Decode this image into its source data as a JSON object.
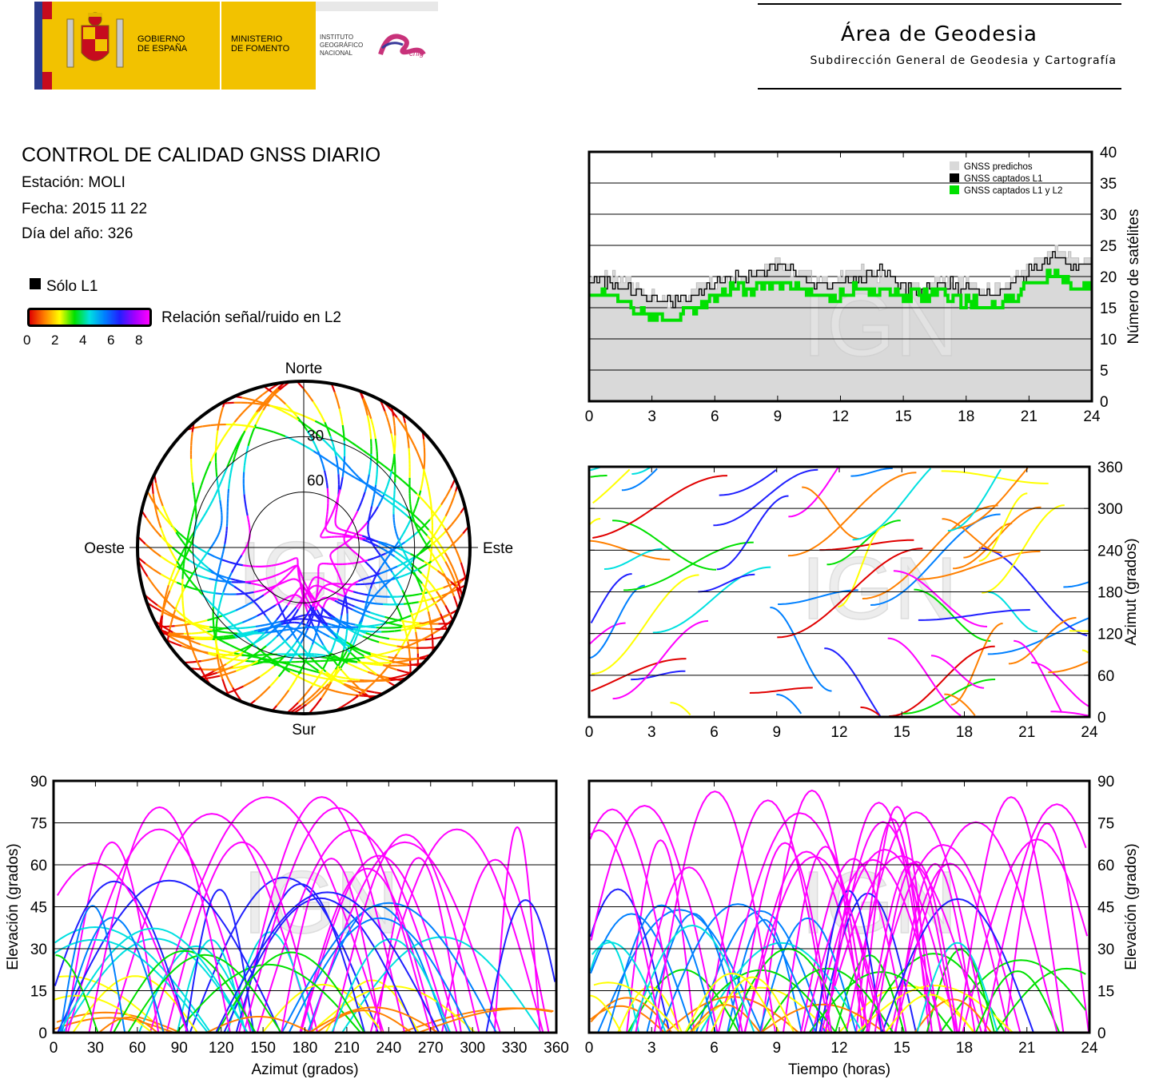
{
  "header": {
    "gov1": "GOBIERNO",
    "gov2": "DE ESPAÑA",
    "min1": "MINISTERIO",
    "min2": "DE FOMENTO",
    "inst1": "INSTITUTO",
    "inst2": "GEOGRÁFICO",
    "inst3": "NACIONAL",
    "cnig": "cnig",
    "area": "Área de Geodesia",
    "subdir": "Subdirección General de Geodesia y Cartografía"
  },
  "info": {
    "title": "CONTROL DE CALIDAD GNSS DIARIO",
    "station": "Estación: MOLI",
    "date": "Fecha: 2015 11 22",
    "doy": "Día del año: 326",
    "solo_l1": "Sólo L1",
    "snr_label": "Relación señal/ruido en L2",
    "snr_ticks": [
      "0",
      "2",
      "4",
      "6",
      "8"
    ]
  },
  "watermark": "IGN",
  "colors": {
    "predicted": "#d9d9d9",
    "l1": "#000000",
    "l1l2": "#00e000",
    "snr_scale": [
      "#e00000",
      "#ff8000",
      "#ffff00",
      "#00e000",
      "#00e0e0",
      "#0080ff",
      "#2020ff",
      "#ff00ff"
    ]
  },
  "chart_data": [
    {
      "id": "satellite-count",
      "type": "line",
      "x": [
        0,
        1,
        2,
        3,
        4,
        5,
        6,
        7,
        8,
        9,
        10,
        11,
        12,
        13,
        14,
        15,
        16,
        17,
        18,
        19,
        20,
        21,
        22,
        23,
        24
      ],
      "xlim": [
        0,
        24
      ],
      "xticks": [
        "0",
        "3",
        "6",
        "9",
        "12",
        "15",
        "18",
        "21",
        "24"
      ],
      "ylim": [
        0,
        40
      ],
      "yticks": [
        "0",
        "5",
        "10",
        "15",
        "20",
        "25",
        "30",
        "35",
        "40"
      ],
      "ylabel": "Número de satélites",
      "legend": [
        "GNSS predichos",
        "GNSS captados L1",
        "GNSS captados L1 y L2"
      ],
      "legend_position": "top-right",
      "series": [
        {
          "name": "GNSS predichos",
          "values": [
            20,
            20,
            19,
            17,
            16,
            18,
            19,
            20,
            21,
            22,
            21,
            19,
            20,
            21,
            20,
            19,
            19,
            19,
            19,
            18,
            19,
            22,
            24,
            23,
            22
          ]
        },
        {
          "name": "GNSS captados L1",
          "values": [
            20,
            19,
            18,
            17,
            16,
            17,
            19,
            20,
            20,
            22,
            21,
            18,
            19,
            20,
            21,
            18,
            18,
            19,
            18,
            17,
            18,
            21,
            23,
            22,
            21
          ]
        },
        {
          "name": "GNSS captados L1 y L2",
          "values": [
            18,
            17,
            15,
            14,
            13,
            15,
            17,
            18,
            18,
            19,
            18,
            17,
            17,
            18,
            18,
            17,
            17,
            17,
            16,
            15,
            16,
            19,
            20,
            19,
            18
          ]
        }
      ]
    },
    {
      "id": "skyplot",
      "type": "scatter",
      "labels": {
        "n": "Norte",
        "s": "Sur",
        "e": "Este",
        "w": "Oeste"
      },
      "rings": [
        "30",
        "60"
      ]
    },
    {
      "id": "azimuth-time",
      "type": "scatter",
      "xlim": [
        0,
        24
      ],
      "xticks": [
        "0",
        "3",
        "6",
        "9",
        "12",
        "15",
        "18",
        "21",
        "24"
      ],
      "ylim": [
        0,
        360
      ],
      "yticks": [
        "0",
        "60",
        "120",
        "180",
        "240",
        "300",
        "360"
      ],
      "ylabel": "Azimut (grados)"
    },
    {
      "id": "elevation-azimuth",
      "type": "scatter",
      "xlim": [
        0,
        360
      ],
      "xticks": [
        "0",
        "30",
        "60",
        "90",
        "120",
        "150",
        "180",
        "210",
        "240",
        "270",
        "300",
        "330",
        "360"
      ],
      "ylim": [
        0,
        90
      ],
      "yticks": [
        "0",
        "15",
        "30",
        "45",
        "60",
        "75",
        "90"
      ],
      "xlabel": "Azimut (grados)",
      "ylabel": "Elevación (grados)"
    },
    {
      "id": "elevation-time",
      "type": "scatter",
      "xlim": [
        0,
        24
      ],
      "xticks": [
        "0",
        "3",
        "6",
        "9",
        "12",
        "15",
        "18",
        "21",
        "24"
      ],
      "ylim": [
        0,
        90
      ],
      "yticks": [
        "0",
        "15",
        "30",
        "45",
        "60",
        "75",
        "90"
      ],
      "xlabel": "Tiempo (horas)",
      "ylabel": "Elevación (grados)"
    }
  ]
}
